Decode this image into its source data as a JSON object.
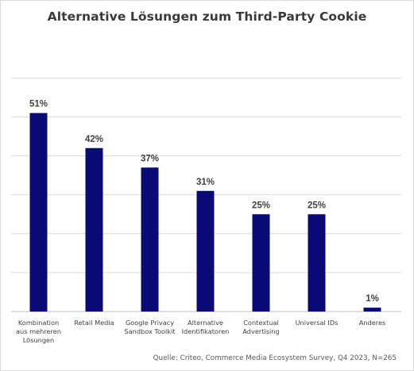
{
  "title": "Alternative Lösungen zum Third-Party Cookie",
  "source": "Quelle: Criteo, Commerce Media Ecosystem Survey, Q4 2023, N=265",
  "chart_data": {
    "type": "bar",
    "title": "Alternative Lösungen zum Third-Party Cookie",
    "categories": [
      [
        "Kombination",
        "aus mehreren",
        "Lösungen"
      ],
      [
        "Retail Media"
      ],
      [
        "Google Privacy",
        "Sandbox Toolkit"
      ],
      [
        "Alternative",
        "Identifikatoren"
      ],
      [
        "Contextual",
        "Advertising"
      ],
      [
        "Universal IDs"
      ],
      [
        "Anderes"
      ]
    ],
    "values": [
      51,
      42,
      37,
      31,
      25,
      25,
      1
    ],
    "value_labels": [
      "51%",
      "42%",
      "37%",
      "31%",
      "25%",
      "25%",
      "1%"
    ],
    "ylim": [
      0,
      60
    ],
    "grid": true,
    "bar_color": "#0b0b78",
    "xlabel": "",
    "ylabel": ""
  }
}
